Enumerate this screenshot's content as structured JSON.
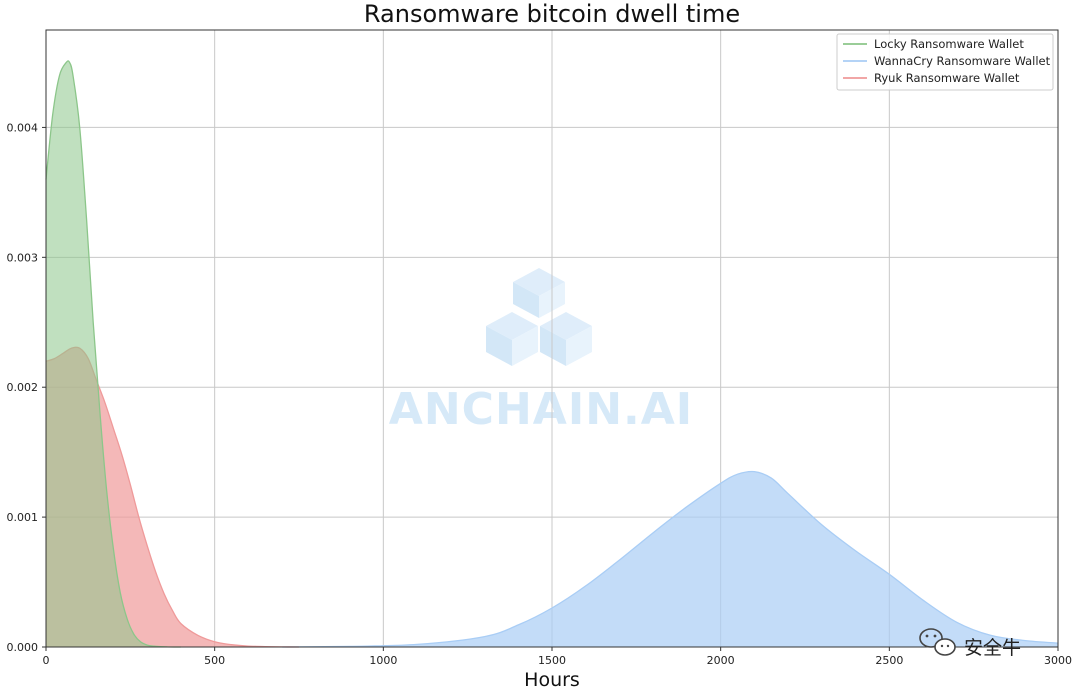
{
  "chart_data": {
    "type": "area",
    "title": "Ransomware bitcoin dwell time",
    "xlabel": "Hours",
    "ylabel": "",
    "xlim": [
      0,
      3000
    ],
    "ylim": [
      0,
      0.00475
    ],
    "xticks": [
      "0",
      "500",
      "1000",
      "1500",
      "2000",
      "2500",
      "3000"
    ],
    "yticks": [
      "0.000",
      "0.001",
      "0.002",
      "0.003",
      "0.004"
    ],
    "grid": true,
    "legend_position": "top-right",
    "series": [
      {
        "name": "Locky Ransomware Wallet",
        "color": "#8cc68a",
        "x": [
          0,
          20,
          40,
          60,
          70,
          80,
          100,
          120,
          140,
          160,
          180,
          200,
          220,
          240,
          260,
          280,
          300,
          320,
          340,
          360,
          380,
          400
        ],
        "values": [
          0.0036,
          0.0041,
          0.0044,
          0.0045,
          0.0045,
          0.0044,
          0.004,
          0.0033,
          0.0025,
          0.0018,
          0.0012,
          0.00075,
          0.00042,
          0.00022,
          0.0001,
          4e-05,
          1.5e-05,
          6e-06,
          2e-06,
          1e-06,
          3e-07,
          0.0
        ]
      },
      {
        "name": "WannaCry Ransomware Wallet",
        "color": "#a9cdf5",
        "x": [
          700,
          900,
          1100,
          1300,
          1400,
          1500,
          1600,
          1700,
          1800,
          1900,
          2000,
          2050,
          2100,
          2150,
          2200,
          2300,
          2400,
          2500,
          2600,
          2700,
          2800,
          2900,
          3000
        ],
        "values": [
          0.0,
          5e-06,
          2e-05,
          8e-05,
          0.00017,
          0.0003,
          0.00047,
          0.00067,
          0.00088,
          0.00108,
          0.00126,
          0.00133,
          0.00135,
          0.0013,
          0.00118,
          0.00094,
          0.00074,
          0.00056,
          0.00036,
          0.00019,
          9e-05,
          5e-05,
          3e-05
        ]
      },
      {
        "name": "Ryuk Ransomware Wallet",
        "color": "#ef9a9a",
        "x": [
          0,
          25,
          50,
          75,
          100,
          125,
          150,
          175,
          200,
          225,
          250,
          275,
          300,
          325,
          350,
          375,
          400,
          450,
          500,
          550,
          600,
          650,
          700,
          750
        ],
        "values": [
          0.0022,
          0.00222,
          0.00226,
          0.0023,
          0.0023,
          0.00222,
          0.00205,
          0.00188,
          0.00168,
          0.00148,
          0.00125,
          0.001,
          0.00078,
          0.00058,
          0.00041,
          0.00028,
          0.00018,
          9e-05,
          4e-05,
          1.8e-05,
          7e-06,
          3e-06,
          1e-06,
          0.0
        ]
      }
    ]
  },
  "watermark": {
    "text": "ANCHAIN.AI",
    "color": "#d6e9f8"
  },
  "wechat_badge": {
    "text": "安全牛",
    "icon": "wechat-icon"
  }
}
